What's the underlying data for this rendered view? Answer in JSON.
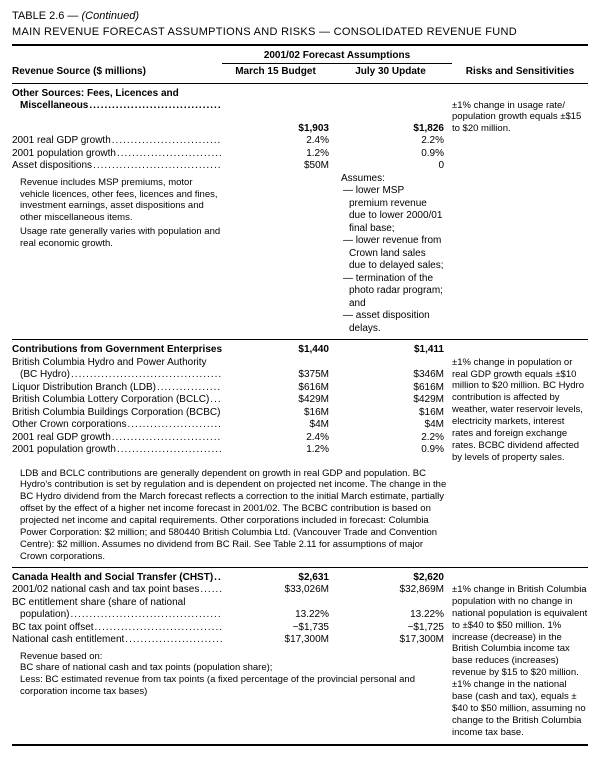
{
  "title": {
    "table_num": "TABLE 2.6 — ",
    "continued": "(Continued)",
    "main": "MAIN REVENUE FORECAST ASSUMPTIONS AND RISKS — CONSOLIDATED REVENUE FUND"
  },
  "headers": {
    "forecast": "2001/02 Forecast Assumptions",
    "source": "Revenue Source ($ millions)",
    "march": "March 15 Budget",
    "july": "July 30 Update",
    "risks": "Risks and Sensitivities"
  },
  "sec1": {
    "head_label": "Other Sources: Fees, Licences and Miscellaneous",
    "head_m": "$1,903",
    "head_j": "$1,826",
    "rows": [
      {
        "label": "2001 real GDP growth",
        "m": "2.4%",
        "j": "2.2%"
      },
      {
        "label": "2001 population growth",
        "m": "1.2%",
        "j": "0.9%"
      },
      {
        "label": "Asset dispositions",
        "m": "$50M",
        "j": "0"
      }
    ],
    "assumes_label": "Assumes:",
    "assumes": [
      "— lower MSP premium revenue due to lower 2000/01 final base;",
      "— lower revenue from Crown land sales due to delayed sales;",
      "— termination of the photo radar program; and",
      "— asset disposition delays."
    ],
    "revenue_note": [
      "Revenue includes MSP premiums, motor vehicle licences, other fees, licences and fines, investment earnings, asset dispositions and other miscellaneous items.",
      "Usage rate generally varies with population and real economic growth."
    ],
    "risks": "±1% change in usage rate/ population growth equals ±$15 to $20 million."
  },
  "sec2": {
    "head_label": "Contributions from Government Enterprises",
    "head_m": "$1,440",
    "head_j": "$1,411",
    "rows": [
      {
        "label": "British Columbia Hydro and Power Authority (BC Hydro)",
        "m": "$375M",
        "j": "$346M"
      },
      {
        "label": "Liquor Distribution Branch (LDB)",
        "m": "$616M",
        "j": "$616M"
      },
      {
        "label": "British Columbia Lottery Corporation (BCLC)",
        "m": "$429M",
        "j": "$429M"
      },
      {
        "label": "British Columbia Buildings Corporation (BCBC)",
        "m": "$16M",
        "j": "$16M"
      },
      {
        "label": "Other Crown corporations",
        "m": "$4M",
        "j": "$4M"
      },
      {
        "label": "2001 real GDP growth",
        "m": "2.4%",
        "j": "2.2%"
      },
      {
        "label": "2001 population growth",
        "m": "1.2%",
        "j": "0.9%"
      }
    ],
    "risks": "±1% change in population or real GDP growth equals ±$10 million to $20 million. BC Hydro contribution is affected by weather, water reservoir levels, electricity markets, interest rates and foreign exchange rates. BCBC dividend affected by levels of property sales.",
    "note": "LDB and BCLC contributions are generally dependent on growth in real GDP and population. BC Hydro's contribution is set by regulation and is dependent on projected net income. The change in the BC Hydro dividend from the March forecast reflects a correction to the initial March estimate, partially offset by the effect of a higher net income forecast in 2001/02. The BCBC contribution is based on projected net income and capital requirements. Other corporations included in forecast: Columbia Power Corporation: $2 million; and 580440 British Columbia Ltd. (Vancouver Trade and Convention Centre): $2 million. Assumes no dividend from BC Rail. See Table 2.11 for assumptions of major Crown corporations."
  },
  "sec3": {
    "head_label": "Canada Health and Social Transfer (CHST)",
    "head_m": "$2,631",
    "head_j": "$2,620",
    "rows": [
      {
        "label": "2001/02 national cash and tax point bases",
        "m": "$33,026M",
        "j": "$32,869M"
      },
      {
        "label": "BC entitlement share (share of national population)",
        "m": "13.22%",
        "j": "13.22%"
      },
      {
        "label": "BC tax point offset",
        "m": "−$1,735",
        "j": "−$1,725"
      },
      {
        "label": "National cash entitlement",
        "m": "$17,300M",
        "j": "$17,300M"
      }
    ],
    "revenue_note": [
      "Revenue based on:",
      "BC share of national cash and tax points (population share);",
      "Less: BC estimated revenue from tax points (a fixed percentage of the provincial personal and corporation income tax bases)"
    ],
    "risks": "±1% change in British Columbia population with no change in national population is equivalent to ±$40 to $50 million. 1% increase (decrease) in the British Columbia income tax base reduces (increases) revenue by $15 to $20 million. ±1% change in the national base (cash and tax), equals ±$40 to $50 million, assuming no change to the British Columbia income tax base."
  }
}
